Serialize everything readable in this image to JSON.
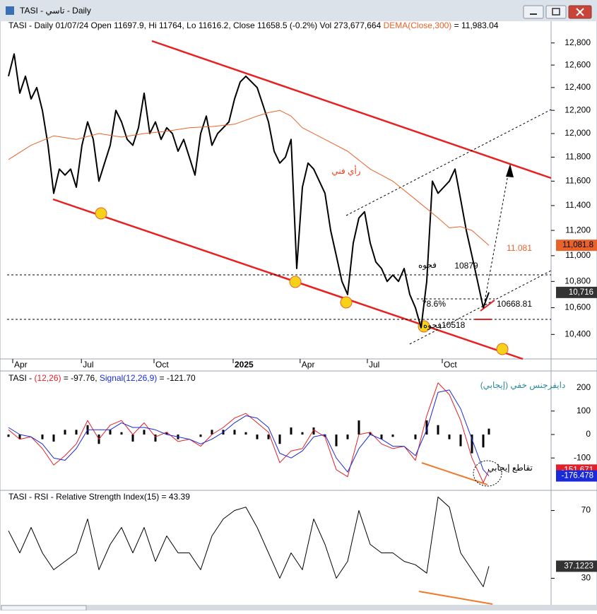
{
  "window": {
    "title": "TASI - تاسي - Daily"
  },
  "chart_data": [
    {
      "type": "line",
      "log_scale": true,
      "title": "TASI - Daily 01/07/24 Open 11697.9, Hi 11764, Lo 11616.2, Close 11658.5 (-0.2%) Vol 273,677,664",
      "xlim": [
        0,
        96
      ],
      "ylim": [
        10220,
        13000
      ],
      "xticks": [
        {
          "value": 0.75,
          "label": "Apr"
        },
        {
          "value": 12.9,
          "label": "Jul"
        },
        {
          "value": 25.75,
          "label": "Oct"
        },
        {
          "value": 39.75,
          "label": "2025",
          "bold": true
        },
        {
          "value": 51.6,
          "label": "Apr"
        },
        {
          "value": 63.5,
          "label": "Jul"
        },
        {
          "value": 76.75,
          "label": "Oct"
        }
      ],
      "yticks": [
        {
          "value": 12800,
          "label": "12,800"
        },
        {
          "value": 12600,
          "label": "12,600"
        },
        {
          "value": 12400,
          "label": "12,400"
        },
        {
          "value": 12200,
          "label": "12,200"
        },
        {
          "value": 12000,
          "label": "12,000"
        },
        {
          "value": 11800,
          "label": "11,800"
        },
        {
          "value": 11600,
          "label": "11,600"
        },
        {
          "value": 11400,
          "label": "11,400"
        },
        {
          "value": 11200,
          "label": "11,200"
        },
        {
          "value": 11000,
          "label": "11,000"
        },
        {
          "value": 10800,
          "label": "10,800"
        },
        {
          "value": 10600,
          "label": "10,600"
        },
        {
          "value": 10400,
          "label": "10,400"
        }
      ],
      "series": [
        {
          "color": "#000000",
          "width": 2,
          "last_label": "10,716",
          "x": [
            0,
            1,
            2,
            3,
            4,
            5,
            6,
            7,
            8,
            9,
            10,
            11,
            12,
            13,
            14,
            15,
            16,
            17,
            18,
            19,
            20,
            21,
            22,
            23,
            24,
            25,
            26,
            27,
            28,
            29,
            30,
            31,
            32,
            33,
            34,
            35,
            36,
            37,
            38,
            39,
            40,
            41,
            42,
            43,
            44,
            45,
            46,
            47,
            48,
            49,
            50,
            51,
            52,
            53,
            54,
            55,
            56,
            57,
            58,
            59,
            60,
            61,
            62,
            63,
            64,
            65,
            66,
            67,
            68,
            69,
            70,
            71,
            72,
            73,
            74,
            75,
            76,
            77,
            78,
            79,
            80,
            81,
            82,
            83,
            84,
            85
          ],
          "values": [
            12500,
            12700,
            12350,
            12500,
            12300,
            12400,
            12200,
            11900,
            11500,
            11700,
            11650,
            11700,
            11550,
            11900,
            12100,
            11950,
            11600,
            11750,
            11900,
            12200,
            12100,
            11950,
            11900,
            12050,
            12350,
            12000,
            12100,
            11950,
            12050,
            12000,
            11850,
            11950,
            11800,
            11650,
            12000,
            12150,
            11900,
            12000,
            12050,
            12100,
            12300,
            12450,
            12500,
            12450,
            12400,
            12250,
            12100,
            11850,
            11750,
            11800,
            11950,
            10900,
            11550,
            11750,
            11700,
            11600,
            11500,
            11200,
            11000,
            10800,
            10700,
            11100,
            11300,
            11350,
            11100,
            10950,
            10900,
            10800,
            10850,
            10800,
            10900,
            10700,
            10600,
            10450,
            10800,
            11600,
            11500,
            11550,
            11600,
            11700,
            11450,
            11200,
            11000,
            10800,
            10600,
            10716
          ]
        },
        {
          "name": "DEMA(Close,300)",
          "color": "#e8632b",
          "width": 1,
          "readout": "= 11,983.04",
          "last_label": "11,081.8",
          "x": [
            0,
            4,
            8,
            12,
            16,
            20,
            24,
            28,
            32,
            36,
            40,
            44,
            46,
            48,
            50,
            52,
            56,
            60,
            64,
            68,
            72,
            76,
            78,
            80,
            82,
            85
          ],
          "values": [
            11780,
            11900,
            11980,
            11950,
            12000,
            11970,
            12000,
            12020,
            12050,
            12060,
            12080,
            12150,
            12180,
            12200,
            12150,
            12050,
            11950,
            11850,
            11700,
            11600,
            11450,
            11300,
            11220,
            11230,
            11200,
            11081.8
          ]
        }
      ],
      "annotations": [
        {
          "text": "رأي فني",
          "color": "#e8401c"
        },
        {
          "text": "10879",
          "color": "#000000"
        },
        {
          "text": "فجوه",
          "color": "#000000"
        },
        {
          "text": "78.6%",
          "color": "#000000"
        },
        {
          "text": "10668.81",
          "color": "#000000"
        },
        {
          "text": ".10518",
          "color": "#000000"
        },
        {
          "text": "فجوه",
          "color": "#000000"
        },
        {
          "text": "11.081",
          "color": "#e8632b"
        }
      ]
    },
    {
      "type": "line",
      "title": "TASI -",
      "xlim": [
        0,
        96
      ],
      "ylim": [
        -232,
        265
      ],
      "yticks": [
        200,
        100,
        0,
        -100
      ],
      "series": [
        {
          "type": "bar",
          "color": "#000000",
          "x": [
            0,
            2,
            4,
            6,
            8,
            10,
            12,
            14,
            16,
            18,
            20,
            22,
            24,
            26,
            28,
            30,
            32,
            34,
            36,
            38,
            40,
            42,
            44,
            46,
            48,
            50,
            52,
            54,
            56,
            58,
            60,
            62,
            64,
            66,
            68,
            70,
            72,
            74,
            76,
            78,
            80,
            82,
            84,
            85
          ],
          "values": [
            -10,
            -20,
            0,
            -20,
            -30,
            20,
            20,
            40,
            -40,
            20,
            10,
            -30,
            20,
            -30,
            10,
            -20,
            0,
            -10,
            20,
            20,
            20,
            10,
            -20,
            -20,
            -40,
            30,
            10,
            30,
            -10,
            -50,
            -20,
            60,
            10,
            -20,
            -10,
            0,
            -20,
            60,
            40,
            -20,
            -50,
            -80,
            -55,
            25
          ]
        },
        {
          "name": "(12,26)",
          "color": "#e0202a",
          "width": 1,
          "readout": "= -97.76,",
          "last_label": "-151.671",
          "x": [
            0,
            2,
            4,
            6,
            8,
            10,
            12,
            14,
            16,
            18,
            20,
            22,
            24,
            26,
            28,
            30,
            32,
            34,
            36,
            38,
            40,
            42,
            44,
            46,
            48,
            50,
            52,
            54,
            56,
            58,
            60,
            62,
            64,
            66,
            68,
            70,
            72,
            74,
            76,
            78,
            80,
            82,
            84,
            85
          ],
          "values": [
            20,
            -20,
            -10,
            -60,
            -130,
            -90,
            -40,
            60,
            -20,
            40,
            60,
            0,
            50,
            -10,
            10,
            -30,
            -20,
            -50,
            0,
            30,
            70,
            90,
            50,
            10,
            -120,
            -70,
            -60,
            20,
            -10,
            -150,
            -180,
            0,
            10,
            -40,
            -60,
            -50,
            -110,
            80,
            220,
            170,
            60,
            -100,
            -205,
            -151.671
          ]
        },
        {
          "name": "Signal(12,26,9)",
          "color": "#1a2ad8",
          "width": 1,
          "readout": "= -121.70",
          "last_label": "-176.478",
          "x": [
            0,
            2,
            4,
            6,
            8,
            10,
            12,
            14,
            16,
            18,
            20,
            22,
            24,
            26,
            28,
            30,
            32,
            34,
            36,
            38,
            40,
            42,
            44,
            46,
            48,
            50,
            52,
            54,
            56,
            58,
            60,
            62,
            64,
            66,
            68,
            70,
            72,
            74,
            76,
            78,
            80,
            82,
            84,
            85
          ],
          "values": [
            30,
            0,
            -10,
            -40,
            -100,
            -110,
            -60,
            20,
            20,
            20,
            50,
            30,
            30,
            20,
            0,
            -10,
            -20,
            -40,
            -20,
            10,
            50,
            80,
            70,
            30,
            -80,
            -100,
            -70,
            -10,
            0,
            -100,
            -160,
            -60,
            0,
            -20,
            -50,
            -50,
            -90,
            20,
            180,
            190,
            110,
            -20,
            -150,
            -176.478
          ]
        }
      ],
      "annotations": [
        {
          "text": "دايفرجنس خفي (إيجابي)",
          "color": "#2a8a9a"
        },
        {
          "text": "تقاطع إيجابي",
          "color": "#000000"
        }
      ]
    },
    {
      "type": "line",
      "title": "TASI - RSI - Relative Strength Index(15) = 43.39",
      "xlim": [
        0,
        96
      ],
      "ylim": [
        16,
        79.4
      ],
      "yticks": [
        70,
        30
      ],
      "series": [
        {
          "color": "#000000",
          "width": 1,
          "last_label": "37.1223",
          "x": [
            0,
            2,
            4,
            6,
            8,
            10,
            12,
            14,
            16,
            18,
            20,
            22,
            24,
            26,
            28,
            30,
            32,
            34,
            36,
            38,
            40,
            42,
            44,
            46,
            48,
            50,
            52,
            54,
            56,
            58,
            60,
            62,
            64,
            66,
            68,
            70,
            72,
            74,
            76,
            78,
            80,
            82,
            84,
            85
          ],
          "values": [
            58,
            45,
            60,
            45,
            35,
            40,
            45,
            65,
            35,
            50,
            60,
            45,
            60,
            40,
            55,
            45,
            45,
            35,
            55,
            65,
            70,
            72,
            60,
            45,
            30,
            45,
            35,
            65,
            50,
            30,
            40,
            70,
            50,
            45,
            45,
            40,
            38,
            33,
            78,
            72,
            45,
            35,
            25,
            37.1223
          ]
        }
      ]
    }
  ]
}
